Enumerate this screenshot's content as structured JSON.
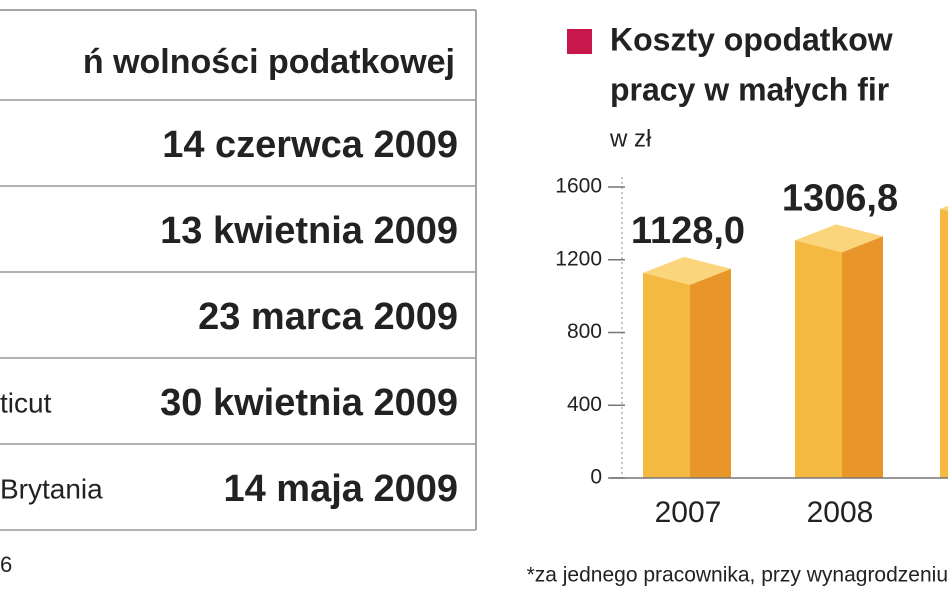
{
  "table": {
    "header": "ń wolności podatkowej",
    "rows": [
      {
        "date": "14 czerwca 2009"
      },
      {
        "date": "13 kwietnia 2009"
      },
      {
        "date": "23 marca 2009"
      },
      {
        "country": "ticut",
        "date": "30 kwietnia 2009"
      },
      {
        "country": "Brytania",
        "date": "14 maja 2009"
      }
    ],
    "source": "6"
  },
  "chart_data": {
    "type": "bar3d",
    "title": [
      "Koszty opodatkow",
      "pracy w  małych fir"
    ],
    "subtitle": "w zł",
    "legend_color": "#c8174a",
    "categories": [
      "2007",
      "2008",
      null
    ],
    "values": [
      1128.0,
      1306.8,
      1480
    ],
    "value_labels": [
      "1128,0",
      "1306,8",
      null
    ],
    "colors": {
      "front": "#f4b940",
      "side": "#e8952a",
      "top": "#fad57c"
    },
    "ylim": [
      0,
      1600
    ],
    "yticks": [
      0,
      400,
      800,
      1200,
      1600
    ],
    "footnote": "*za jednego pracownika, przy wynagrodzeniu"
  }
}
